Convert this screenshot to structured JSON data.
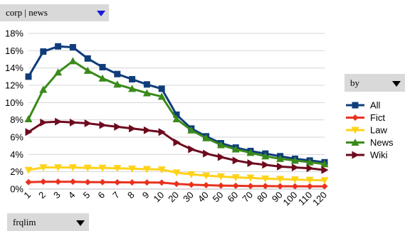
{
  "controls": {
    "corpus_select": "corp | news",
    "frequency_select": "frqlim",
    "by_select": "by"
  },
  "chart_data": {
    "type": "line",
    "categories": [
      "1",
      "2",
      "3",
      "4",
      "5",
      "6",
      "7",
      "8",
      "9",
      "10",
      "20",
      "30",
      "40",
      "50",
      "60",
      "70",
      "80",
      "90",
      "100",
      "110",
      "120"
    ],
    "y_ticks": [
      "0%",
      "2%",
      "4%",
      "6%",
      "8%",
      "10%",
      "12%",
      "14%",
      "16%",
      "18%"
    ],
    "ylim": [
      0,
      18
    ],
    "grid": true,
    "legend_position": "right",
    "series": [
      {
        "name": "All",
        "color": "#0f3d7a",
        "marker": "square",
        "values": [
          13.0,
          15.9,
          16.5,
          16.4,
          15.1,
          14.1,
          13.3,
          12.7,
          12.1,
          11.6,
          8.6,
          7.0,
          6.1,
          5.3,
          4.8,
          4.4,
          4.1,
          3.8,
          3.5,
          3.3,
          3.1
        ]
      },
      {
        "name": "Fict",
        "color": "#e8321e",
        "marker": "diamond",
        "values": [
          0.8,
          0.85,
          0.85,
          0.85,
          0.8,
          0.8,
          0.78,
          0.77,
          0.76,
          0.75,
          0.6,
          0.5,
          0.45,
          0.4,
          0.38,
          0.35,
          0.35,
          0.33,
          0.32,
          0.32,
          0.32
        ]
      },
      {
        "name": "Law",
        "color": "#ffd21a",
        "marker": "triangle-down",
        "values": [
          2.2,
          2.5,
          2.5,
          2.5,
          2.45,
          2.45,
          2.4,
          2.35,
          2.3,
          2.25,
          1.9,
          1.7,
          1.55,
          1.45,
          1.35,
          1.3,
          1.2,
          1.15,
          1.1,
          1.05,
          1.0
        ]
      },
      {
        "name": "News",
        "color": "#3a8a1a",
        "marker": "triangle-up",
        "values": [
          8.1,
          11.5,
          13.5,
          14.8,
          13.7,
          12.8,
          12.1,
          11.6,
          11.1,
          10.7,
          8.1,
          6.8,
          5.9,
          5.1,
          4.6,
          4.2,
          3.8,
          3.5,
          3.3,
          3.1,
          2.9
        ]
      },
      {
        "name": "Wiki",
        "color": "#6e0a1e",
        "marker": "triangle-right",
        "values": [
          6.6,
          7.7,
          7.8,
          7.7,
          7.6,
          7.4,
          7.2,
          7.0,
          6.8,
          6.6,
          5.4,
          4.6,
          4.1,
          3.7,
          3.3,
          3.0,
          2.8,
          2.6,
          2.5,
          2.4,
          2.2
        ]
      }
    ]
  }
}
